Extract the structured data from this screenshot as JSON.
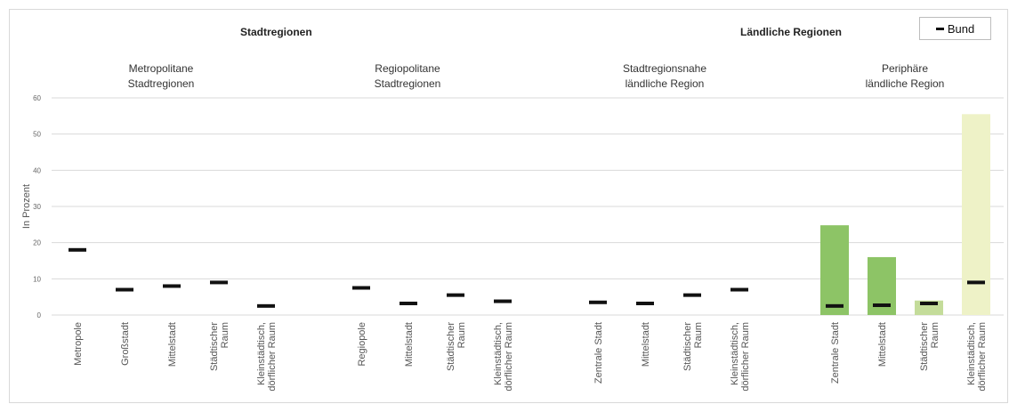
{
  "legend": {
    "label": "Bund"
  },
  "headers": {
    "stadt": "Stadtregionen",
    "land": "Ländliche Regionen"
  },
  "groups": [
    {
      "line1": "Metropolitane",
      "line2": "Stadtregionen"
    },
    {
      "line1": "Regiopolitane",
      "line2": "Stadtregionen"
    },
    {
      "line1": "Stadtregionsnahe",
      "line2": "ländliche Region"
    },
    {
      "line1": "Periphäre",
      "line2": "ländliche Region"
    }
  ],
  "chart_data": {
    "type": "bar",
    "ylabel": "In Prozent",
    "ylim": [
      0,
      60
    ],
    "yticks": [
      0,
      10,
      20,
      30,
      40,
      50,
      60
    ],
    "grid": true,
    "legend_position": "top-right",
    "colors": {
      "bund": "#111111",
      "grid": "#d9d9d9"
    },
    "categories": [
      [
        "Metropole"
      ],
      [
        "Großstadt"
      ],
      [
        "Mittelstadt"
      ],
      [
        "Städtischer",
        "Raum"
      ],
      [
        "Kleinstädtisch,",
        "dörflicher Raum"
      ],
      [
        "Regiopole"
      ],
      [
        "Mittelstadt"
      ],
      [
        "Städtischer",
        "Raum"
      ],
      [
        "Kleinstädtisch,",
        "dörflicher Raum"
      ],
      [
        "Zentrale Stadt"
      ],
      [
        "Mittelstadt"
      ],
      [
        "Städtischer",
        "Raum"
      ],
      [
        "Kleinstädtisch,",
        "dörflicher Raum"
      ],
      [
        "Zentrale Stadt"
      ],
      [
        "Mittelstadt"
      ],
      [
        "Städtischer",
        "Raum"
      ],
      [
        "Kleinstädtisch,",
        "dörflicher Raum"
      ]
    ],
    "bars": [
      null,
      null,
      null,
      null,
      null,
      null,
      null,
      null,
      null,
      null,
      null,
      null,
      null,
      24.8,
      16.0,
      4.0,
      55.5
    ],
    "bar_colors": [
      null,
      null,
      null,
      null,
      null,
      null,
      null,
      null,
      null,
      null,
      null,
      null,
      null,
      "#8dc466",
      "#8dc466",
      "#c4dc9a",
      "#eef2c7"
    ],
    "bund": [
      18.0,
      7.0,
      8.0,
      9.0,
      2.5,
      7.5,
      3.2,
      5.5,
      3.8,
      3.5,
      3.2,
      5.5,
      7.0,
      2.5,
      2.7,
      3.2,
      9.0
    ]
  }
}
